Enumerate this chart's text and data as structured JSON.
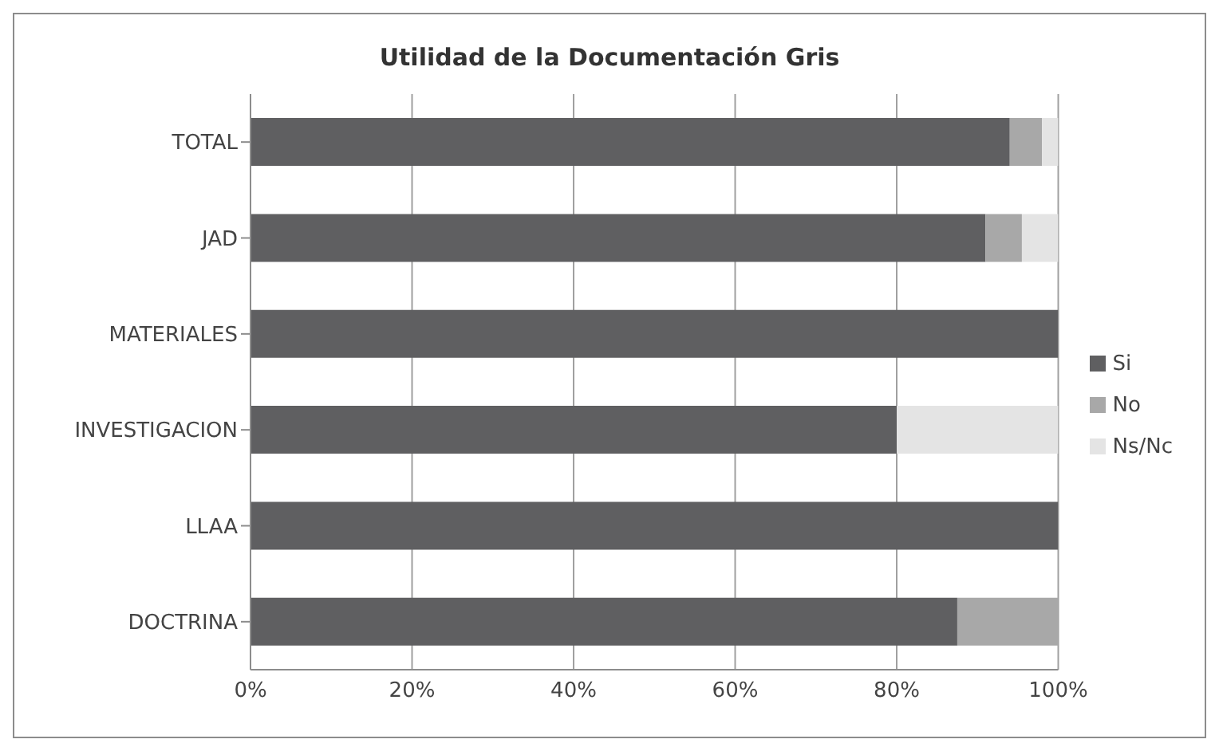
{
  "chart_data": {
    "type": "bar",
    "orientation": "horizontal",
    "stacked": true,
    "title": "Utilidad de la Documentación Gris",
    "categories": [
      "TOTAL",
      "JAD",
      "MATERIALES",
      "INVESTIGACION",
      "LLAA",
      "DOCTRINA"
    ],
    "series": [
      {
        "name": "Si",
        "color": "#5f5f61",
        "values": [
          94,
          91,
          100,
          80,
          100,
          87.5
        ]
      },
      {
        "name": "No",
        "color": "#a8a8a8",
        "values": [
          4,
          4.5,
          0,
          0,
          0,
          12.5
        ]
      },
      {
        "name": "Ns/Nc",
        "color": "#e4e4e4",
        "values": [
          2,
          4.5,
          0,
          20,
          0,
          0
        ]
      }
    ],
    "xlim": [
      0,
      100
    ],
    "xticks": [
      {
        "value": 0,
        "label": "0%"
      },
      {
        "value": 20,
        "label": "20%"
      },
      {
        "value": 40,
        "label": "40%"
      },
      {
        "value": 60,
        "label": "60%"
      },
      {
        "value": 80,
        "label": "80%"
      },
      {
        "value": 100,
        "label": "100%"
      }
    ],
    "grid": "x",
    "legend": "right"
  }
}
